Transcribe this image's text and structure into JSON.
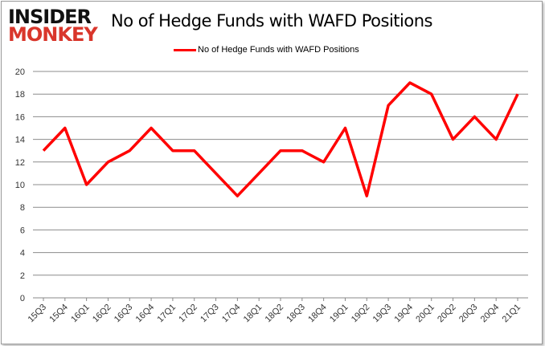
{
  "logo": {
    "line1": "INSIDER",
    "line2": "MONKEY"
  },
  "chart_data": {
    "type": "line",
    "title": "No of Hedge Funds with WAFD Positions",
    "legend": {
      "position": "top",
      "entries": [
        "No of Hedge Funds with WAFD Positions"
      ]
    },
    "categories": [
      "15Q3",
      "15Q4",
      "16Q1",
      "16Q2",
      "16Q3",
      "16Q4",
      "17Q1",
      "17Q2",
      "17Q3",
      "17Q4",
      "18Q1",
      "18Q2",
      "18Q3",
      "18Q4",
      "19Q1",
      "19Q2",
      "19Q3",
      "19Q4",
      "20Q1",
      "20Q2",
      "20Q3",
      "20Q4",
      "21Q1"
    ],
    "series": [
      {
        "name": "No of Hedge Funds with WAFD Positions",
        "color": "#ff0000",
        "values": [
          13,
          15,
          10,
          12,
          13,
          15,
          13,
          13,
          11,
          9,
          11,
          13,
          13,
          12,
          15,
          9,
          17,
          19,
          18,
          14,
          16,
          14,
          18
        ]
      }
    ],
    "ylim": [
      0,
      20
    ],
    "yticks": [
      0,
      2,
      4,
      6,
      8,
      10,
      12,
      14,
      16,
      18,
      20
    ],
    "grid": true,
    "xlabel": "",
    "ylabel": ""
  }
}
